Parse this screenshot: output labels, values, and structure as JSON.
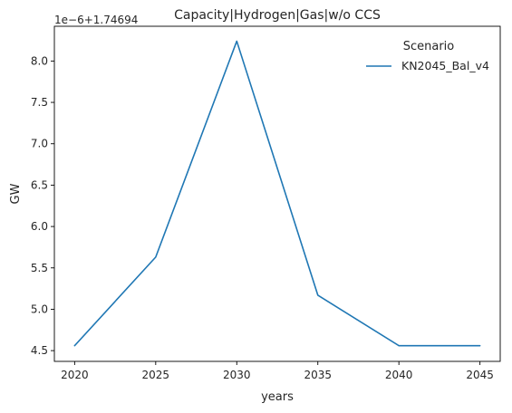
{
  "chart_data": {
    "type": "line",
    "title": "Capacity|Hydrogen|Gas|w/o CCS",
    "xlabel": "years",
    "ylabel": "GW",
    "y_offset_label": "1e−6+1.74694",
    "x": [
      2020,
      2025,
      2030,
      2035,
      2040,
      2045
    ],
    "x_ticks": [
      2020,
      2025,
      2030,
      2035,
      2040,
      2045
    ],
    "x_tick_labels": [
      "2020",
      "2025",
      "2030",
      "2035",
      "2040",
      "2045"
    ],
    "y_ticks": [
      4.5,
      5.0,
      5.5,
      6.0,
      6.5,
      7.0,
      7.5,
      8.0
    ],
    "y_tick_labels": [
      "4.5",
      "5.0",
      "5.5",
      "6.0",
      "6.5",
      "7.0",
      "7.5",
      "8.0"
    ],
    "xlim": [
      2018.75,
      2046.25
    ],
    "ylim": [
      4.37,
      8.42
    ],
    "grid": false,
    "legend": {
      "title": "Scenario",
      "placement": "top-right"
    },
    "series": [
      {
        "name": "KN2045_Bal_v4",
        "color": "#1f77b4",
        "values": [
          4.56,
          5.63,
          8.24,
          5.17,
          4.56,
          4.56
        ]
      }
    ]
  }
}
